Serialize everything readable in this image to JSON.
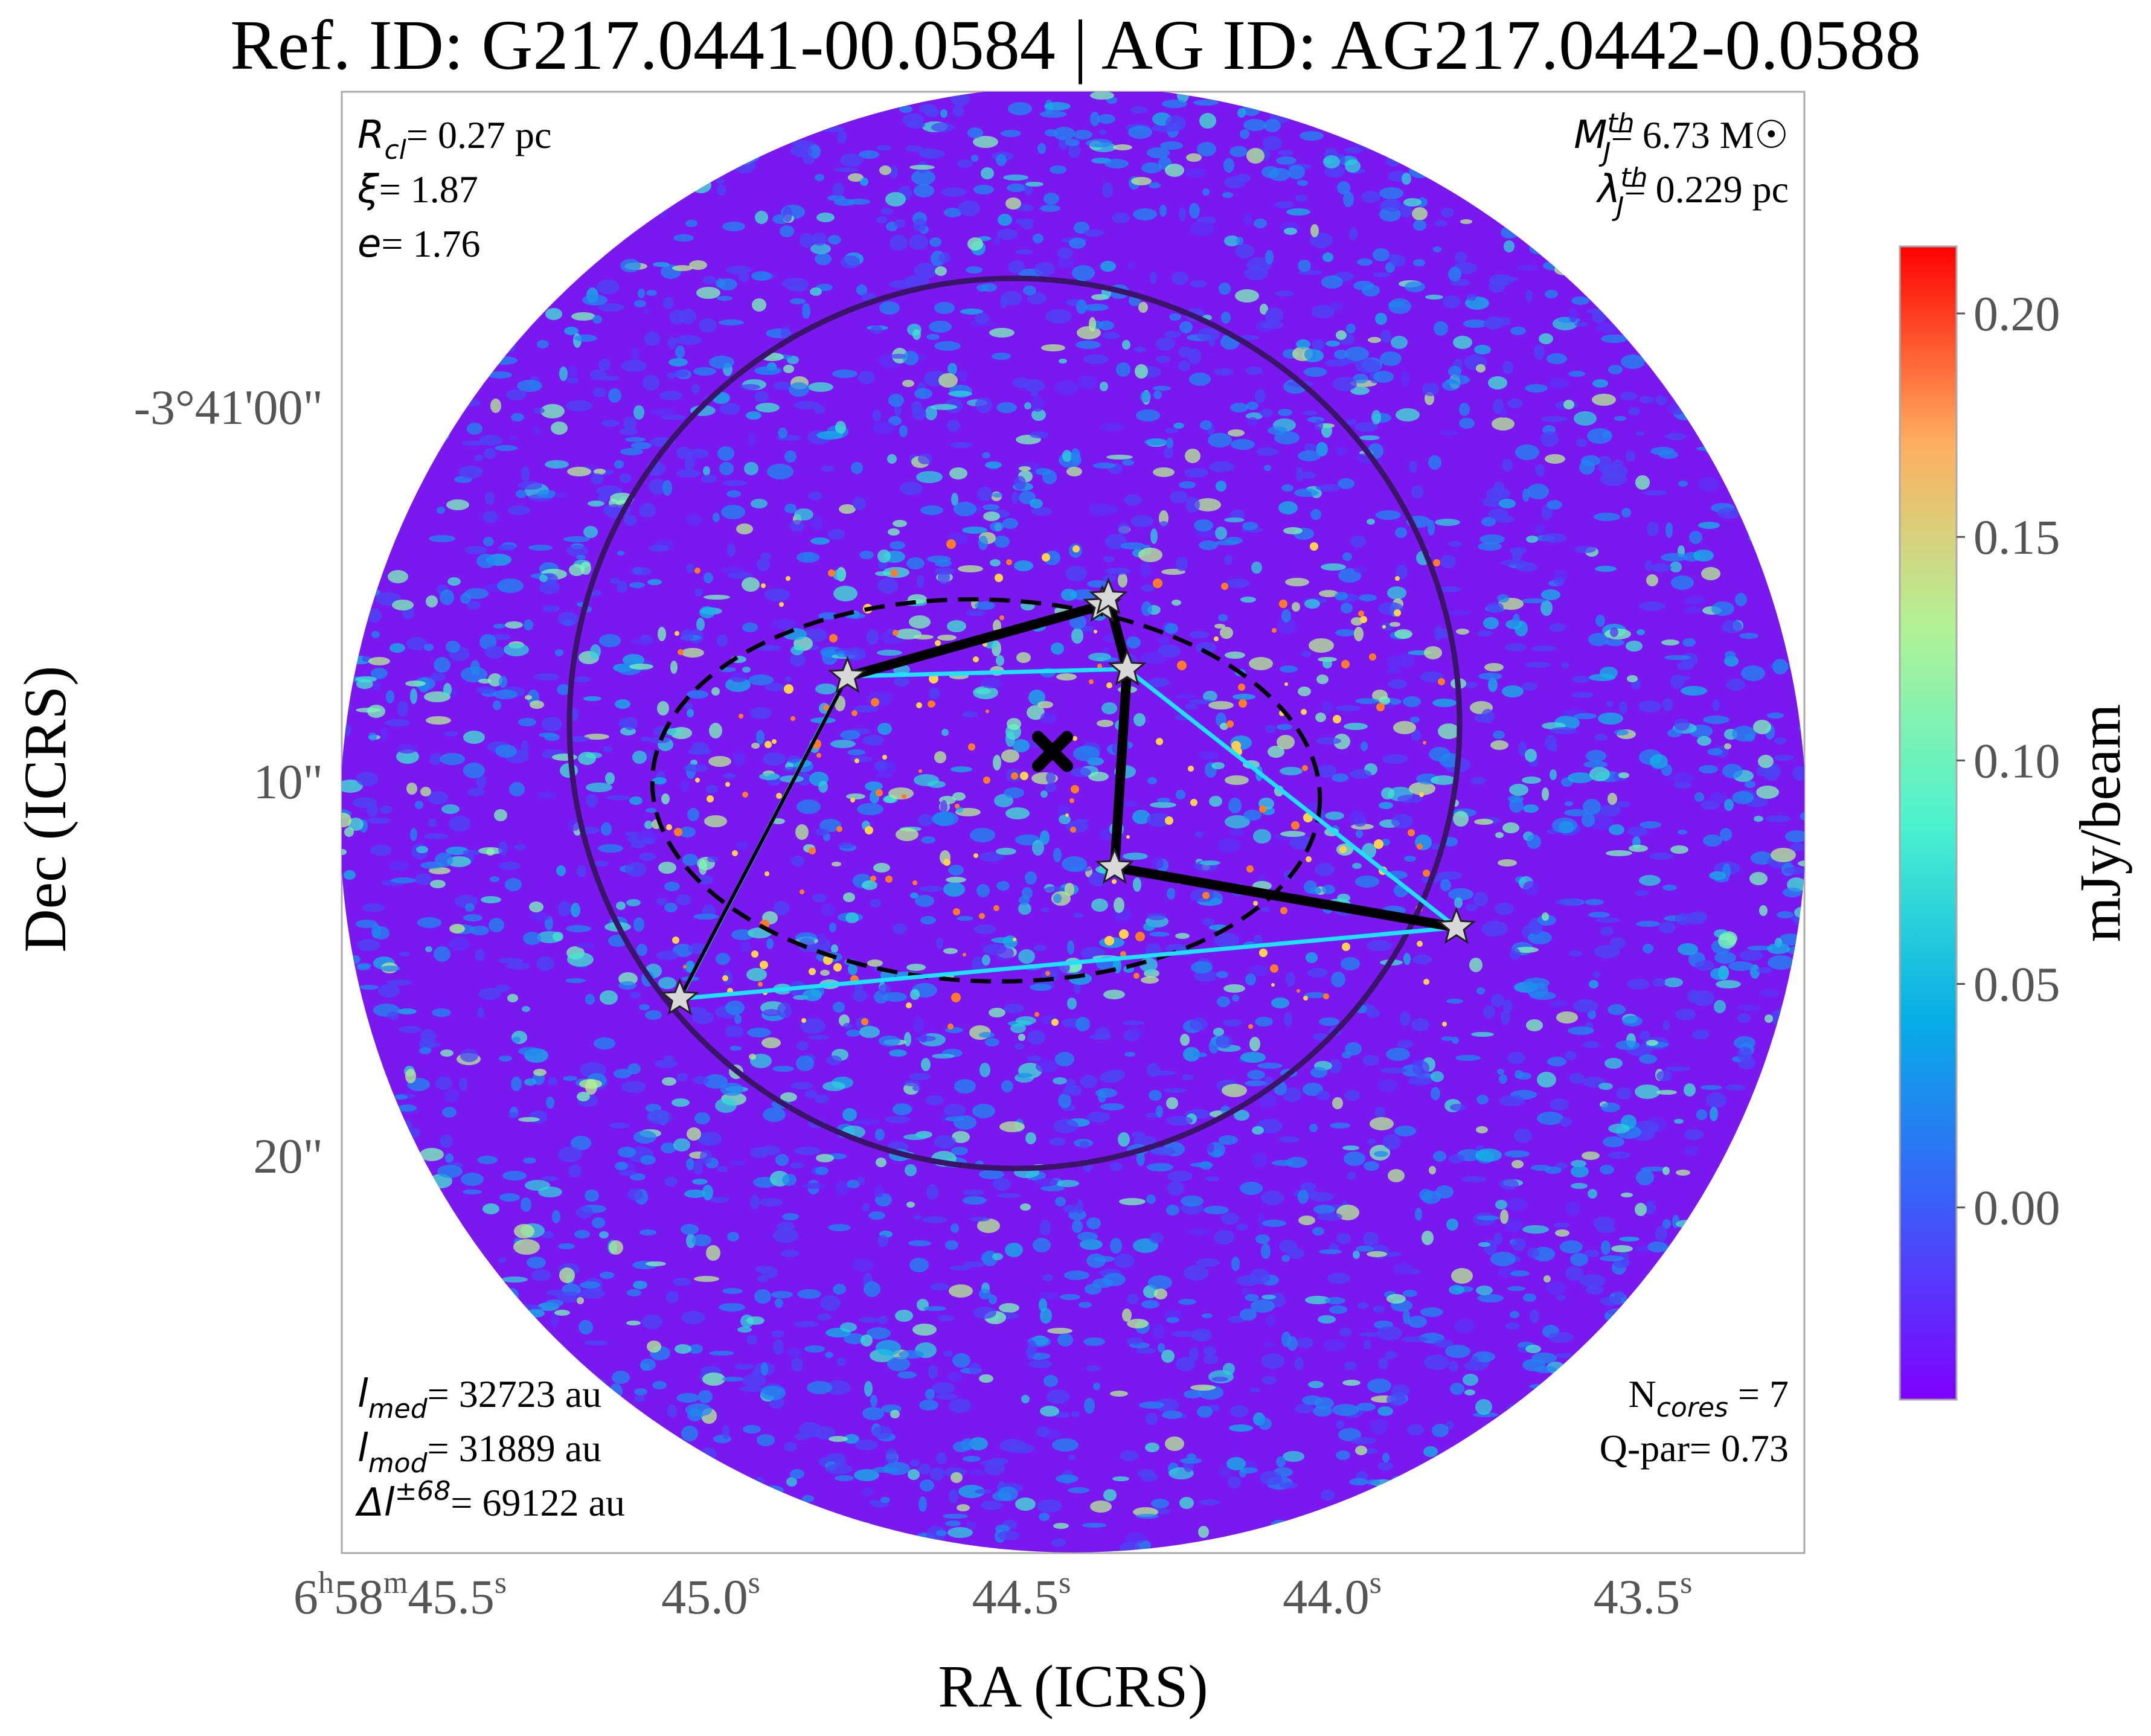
{
  "title": "Ref. ID: G217.0441-00.0584 | AG ID: AG217.0442-0.0588",
  "chart_data": {
    "type": "heatmap",
    "xlabel": "RA (ICRS)",
    "ylabel": "Dec (ICRS)",
    "x_ticks": [
      {
        "h": "6",
        "m": "58",
        "s": "45.5",
        "frac_s": 45.5
      },
      {
        "s": "45.0",
        "frac_s": 45.0
      },
      {
        "s": "44.5",
        "frac_s": 44.5
      },
      {
        "s": "44.0",
        "frac_s": 44.0
      },
      {
        "s": "43.5",
        "frac_s": 43.5
      }
    ],
    "y_ticks": [
      {
        "label": "-3°41'00\"",
        "offset_arcsec": 0
      },
      {
        "label": "10\"",
        "offset_arcsec": 10
      },
      {
        "label": "20\"",
        "offset_arcsec": 20
      }
    ],
    "colorbar": {
      "label": "mJy/beam",
      "ticks": [
        "0.20",
        "0.15",
        "0.10",
        "0.05",
        "0.00"
      ],
      "tick_values": [
        0.2,
        0.15,
        0.1,
        0.05,
        0.0
      ],
      "range": [
        -0.043,
        0.215
      ],
      "colormap": "rainbow"
    },
    "annotations_left_top": [
      {
        "sym": "R",
        "sub": "cl",
        "value": "= 0.27 pc"
      },
      {
        "sym": "ξ",
        "sub": "",
        "value": "= 1.87"
      },
      {
        "sym": "e",
        "sub": "",
        "value": "= 1.76"
      }
    ],
    "annotations_right_top": [
      {
        "sym": "M",
        "sub": "J",
        "sup": "th",
        "value": "= 6.73 M☉"
      },
      {
        "sym": "λ",
        "sub": "J",
        "sup": "th",
        "value": "= 0.229 pc"
      }
    ],
    "annotations_left_bottom": [
      {
        "sym": "l",
        "sub": "med",
        "value": "= 32723 au"
      },
      {
        "sym": "l",
        "sub": "mod",
        "value": "= 31889 au"
      },
      {
        "sym": "Δl",
        "sup": "±68",
        "value": "= 69122 au"
      }
    ],
    "annotations_right_bottom": [
      {
        "text": "N",
        "sub": "cores",
        "rest": " = 7"
      },
      {
        "text": "Q-par= 0.73"
      }
    ],
    "cores": [
      {
        "ra_s": 44.37,
        "dec_off": 5.3
      },
      {
        "ra_s": 44.36,
        "dec_off": 5.1
      },
      {
        "ra_s": 44.78,
        "dec_off": 7.2
      },
      {
        "ra_s": 44.33,
        "dec_off": 7.0
      },
      {
        "ra_s": 44.35,
        "dec_off": 12.3
      },
      {
        "ra_s": 43.8,
        "dec_off": 13.9
      },
      {
        "ra_s": 45.05,
        "dec_off": 15.8
      }
    ],
    "centroid": {
      "ra_s": 44.45,
      "dec_off": 9.2
    },
    "mst_edges": [
      [
        2,
        0
      ],
      [
        0,
        1
      ],
      [
        1,
        3
      ],
      [
        3,
        4
      ],
      [
        4,
        5
      ],
      [
        2,
        6
      ]
    ],
    "colors": {
      "background_low": "#7a18f0",
      "mst_black": "#000000",
      "mst_cyan": "#1ee0ff",
      "circle": "#3a1466",
      "star_fill": "#d8d8d8"
    }
  }
}
